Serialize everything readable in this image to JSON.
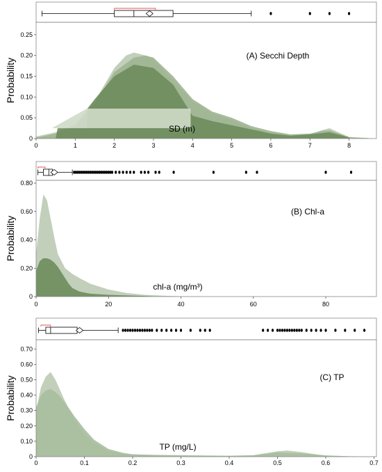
{
  "panels": [
    {
      "annotation": "(A) Secchi Depth",
      "inner_label": "SD (m)",
      "ylabel": "Probability",
      "chart_data": {
        "type": "area",
        "xlabel": "SD (m)",
        "ylabel": "Probability",
        "xlim": [
          0,
          8.7
        ],
        "ylim": [
          0,
          0.28
        ],
        "xticks": [
          "0",
          "1",
          "2",
          "3",
          "4",
          "5",
          "6",
          "7",
          "8"
        ],
        "xtick_values": [
          0,
          1,
          2,
          3,
          4,
          5,
          6,
          7,
          8
        ],
        "yticks": [
          "0",
          "0.05",
          "0.10",
          "0.15",
          "0.20",
          "0.25"
        ],
        "ytick_values": [
          0,
          0.05,
          0.1,
          0.15,
          0.2,
          0.25
        ],
        "series": [
          {
            "color": "#b7c7ae",
            "x": [
              0,
              0.5,
              1,
              1.5,
              2,
              2.3,
              2.5,
              2.8,
              3,
              3.5,
              4,
              4.5,
              5,
              5.5,
              6,
              6.5,
              7,
              7.3,
              7.5,
              7.8,
              8,
              8.5
            ],
            "y": [
              0.005,
              0.015,
              0.035,
              0.09,
              0.17,
              0.2,
              0.207,
              0.2,
              0.19,
              0.14,
              0.09,
              0.06,
              0.045,
              0.025,
              0.015,
              0.008,
              0.01,
              0.02,
              0.025,
              0.012,
              0.004,
              0.001
            ]
          },
          {
            "color": "#9fb491",
            "x": [
              0,
              0.5,
              1,
              1.5,
              2,
              2.5,
              2.8,
              3,
              3.5,
              4,
              4.5,
              5,
              5.5,
              6,
              6.5,
              7,
              7.3,
              7.5,
              7.8,
              8,
              8.5
            ],
            "y": [
              0.002,
              0.012,
              0.03,
              0.085,
              0.16,
              0.195,
              0.2,
              0.195,
              0.15,
              0.095,
              0.065,
              0.05,
              0.03,
              0.018,
              0.01,
              0.012,
              0.018,
              0.02,
              0.01,
              0.003,
              0.001
            ]
          },
          {
            "color": "#6d8c5c",
            "x": [
              0.5,
              0.55,
              1.3,
              1.31,
              1.5,
              2,
              2.5,
              3,
              3.5,
              4,
              4.5,
              5,
              5.5,
              6,
              6.5,
              7,
              7.5,
              8
            ],
            "y": [
              0,
              0.025,
              0.025,
              0.072,
              0.095,
              0.15,
              0.178,
              0.17,
              0.13,
              0.055,
              0.042,
              0.032,
              0.022,
              0.012,
              0.007,
              0.01,
              0.015,
              0.003
            ]
          },
          {
            "color": "#cfdac8",
            "x": [
              0.4,
              1.3,
              3.9,
              3.95
            ],
            "y": [
              0.025,
              0.025,
              0.025,
              0.025
            ],
            "band_top": [
              0.025,
              0.072,
              0.072,
              0.072
            ]
          }
        ],
        "boxplot": {
          "min": 0.15,
          "q1": 2.0,
          "median": 2.5,
          "q3": 3.5,
          "max": 5.5,
          "mean": 2.9,
          "shortest_half": [
            2.0,
            3.05
          ],
          "outliers": [
            6.0,
            7.0,
            7.5,
            8.0
          ]
        }
      }
    },
    {
      "annotation": "(B) Chl-a",
      "inner_label": "chl-a (mg/m³)",
      "ylabel": "Probability",
      "chart_data": {
        "type": "area",
        "xlabel": "chl-a (mg/m³)",
        "ylabel": "Probability",
        "xlim": [
          0,
          94
        ],
        "ylim": [
          0,
          0.82
        ],
        "xticks": [
          "0",
          "20",
          "40",
          "60",
          "80"
        ],
        "xtick_values": [
          0,
          20,
          40,
          60,
          80
        ],
        "yticks": [
          "0",
          "0.20",
          "0.40",
          "0.60",
          "0.80"
        ],
        "ytick_values": [
          0,
          0.2,
          0.4,
          0.6,
          0.8
        ],
        "series": [
          {
            "color": "#b7c7ae",
            "x": [
              0,
              1,
              2,
              3,
              4,
              5,
              6,
              8,
              10,
              12,
              15,
              20,
              25,
              30,
              35,
              40,
              50
            ],
            "y": [
              0.3,
              0.55,
              0.72,
              0.68,
              0.55,
              0.42,
              0.3,
              0.2,
              0.16,
              0.13,
              0.09,
              0.05,
              0.025,
              0.012,
              0.006,
              0.002,
              0
            ]
          },
          {
            "color": "#6d8c5c",
            "x": [
              0,
              1,
              2,
              3,
              4,
              5,
              6,
              7,
              8,
              9,
              10,
              12,
              15,
              20,
              25,
              30,
              35
            ],
            "y": [
              0.18,
              0.25,
              0.27,
              0.27,
              0.26,
              0.24,
              0.21,
              0.17,
              0.13,
              0.09,
              0.06,
              0.035,
              0.02,
              0.012,
              0.008,
              0.004,
              0
            ]
          }
        ],
        "boxplot": {
          "min": 0.5,
          "q1": 2.0,
          "median": 3.5,
          "q3": 4.5,
          "max": 10.0,
          "mean": 5.0,
          "shortest_half": [
            0.5,
            2.5
          ],
          "outliers": [
            10.5,
            11,
            11.5,
            12,
            12.5,
            13,
            13.5,
            14,
            14.5,
            15,
            15.5,
            16,
            16.5,
            17,
            17.5,
            18,
            18.5,
            19,
            19.5,
            20,
            20.5,
            21,
            22,
            23,
            24,
            25,
            26,
            27,
            29,
            30,
            31,
            33,
            34,
            38,
            49,
            58,
            61,
            80,
            87
          ]
        }
      }
    },
    {
      "annotation": "(C)  TP",
      "inner_label": "TP (mg/L)",
      "ylabel": "Probability",
      "chart_data": {
        "type": "area",
        "xlabel": "TP (mg/L)",
        "ylabel": "Probability",
        "xlim": [
          0,
          0.705
        ],
        "ylim": [
          0,
          0.76
        ],
        "xticks": [
          "0",
          "0.1",
          "0.2",
          "0.3",
          "0.4",
          "0.5",
          "0.6",
          "0.7"
        ],
        "xtick_values": [
          0,
          0.1,
          0.2,
          0.3,
          0.4,
          0.5,
          0.6,
          0.7
        ],
        "yticks": [
          "0",
          "0.10",
          "0.20",
          "0.30",
          "0.40",
          "0.50",
          "0.60",
          "0.70"
        ],
        "ytick_values": [
          0,
          0.1,
          0.2,
          0.3,
          0.4,
          0.5,
          0.6,
          0.7
        ],
        "series": [
          {
            "color": "#b7c7ae",
            "x": [
              0,
              0.01,
              0.02,
              0.03,
              0.04,
              0.05,
              0.06,
              0.08,
              0.1,
              0.12,
              0.15,
              0.18,
              0.2,
              0.25,
              0.3,
              0.35,
              0.4,
              0.45,
              0.48,
              0.5,
              0.52,
              0.55,
              0.58,
              0.6,
              0.65,
              0.7
            ],
            "y": [
              0.3,
              0.45,
              0.52,
              0.55,
              0.5,
              0.43,
              0.36,
              0.24,
              0.15,
              0.09,
              0.04,
              0.02,
              0.015,
              0.012,
              0.01,
              0.008,
              0.006,
              0.01,
              0.025,
              0.035,
              0.04,
              0.03,
              0.015,
              0.008,
              0.003,
              0.001
            ]
          },
          {
            "color": "#a9bd9e",
            "x": [
              0,
              0.01,
              0.02,
              0.03,
              0.04,
              0.05,
              0.06,
              0.08,
              0.1,
              0.12,
              0.15,
              0.18,
              0.2,
              0.25,
              0.3,
              0.35,
              0.4,
              0.45,
              0.5,
              0.55,
              0.6,
              0.65,
              0.7
            ],
            "y": [
              0.32,
              0.4,
              0.43,
              0.44,
              0.42,
              0.39,
              0.35,
              0.26,
              0.18,
              0.11,
              0.05,
              0.025,
              0.015,
              0.01,
              0.008,
              0.006,
              0.005,
              0.008,
              0.028,
              0.022,
              0.008,
              0.002,
              0.001
            ]
          }
        ],
        "boxplot": {
          "min": 0.005,
          "q1": 0.02,
          "median": 0.03,
          "q3": 0.085,
          "max": 0.17,
          "mean": 0.09,
          "shortest_half": [
            0.01,
            0.03
          ],
          "outliers": [
            0.18,
            0.185,
            0.19,
            0.195,
            0.2,
            0.205,
            0.21,
            0.215,
            0.22,
            0.225,
            0.23,
            0.235,
            0.24,
            0.25,
            0.26,
            0.27,
            0.28,
            0.29,
            0.3,
            0.32,
            0.34,
            0.35,
            0.36,
            0.47,
            0.48,
            0.49,
            0.5,
            0.505,
            0.51,
            0.515,
            0.52,
            0.525,
            0.53,
            0.535,
            0.54,
            0.545,
            0.55,
            0.56,
            0.57,
            0.58,
            0.59,
            0.6,
            0.62,
            0.64,
            0.66,
            0.68
          ]
        }
      }
    }
  ]
}
